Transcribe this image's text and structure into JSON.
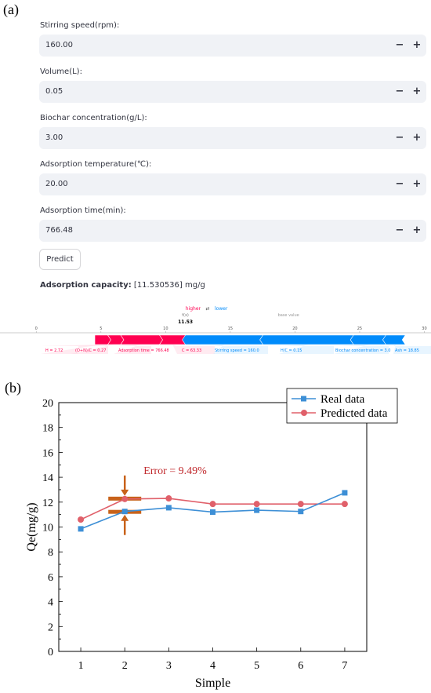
{
  "panel_a_label": "(a)",
  "panel_b_label": "(b)",
  "inputs": [
    {
      "label": "Stirring speed(rpm):",
      "value": "160.00",
      "minus": "−",
      "plus": "+"
    },
    {
      "label": "Volume(L):",
      "value": "0.05",
      "minus": "−",
      "plus": "+"
    },
    {
      "label": "Biochar concentration(g/L):",
      "value": "3.00",
      "minus": "−",
      "plus": "+"
    },
    {
      "label": "Adsorption temperature(℃):",
      "value": "20.00",
      "minus": "−",
      "plus": "+"
    },
    {
      "label": "Adsorption time(min):",
      "value": "766.48",
      "minus": "−",
      "plus": "+"
    }
  ],
  "predict_button": "Predict",
  "result": {
    "label": "Adsorption capacity:",
    "value": "[11.530536] mg/g"
  },
  "force_plot": {
    "higher": "higher",
    "arrows": "⇄",
    "lower": "lower",
    "fx_label": "f(x)",
    "fx_value": "11.53",
    "base_label": "base value",
    "ticks": [
      "0",
      "5",
      "10",
      "15",
      "20",
      "25",
      "30"
    ],
    "tick_values": [
      0,
      5,
      10,
      15,
      20,
      25,
      30
    ],
    "axis_range": [
      -0.5,
      31
    ],
    "fx": 11.53,
    "base": 19.5,
    "positive_color": "#ff0051",
    "negative_color": "#008bfb",
    "positive_features": [
      {
        "label": "H = 2.72",
        "value": 1.0
      },
      {
        "label": "(O+N)/C = 0.27",
        "value": 1.0
      },
      {
        "label": "Adsorption time = 766.48",
        "value": 3.0
      },
      {
        "label": "C = 63.33",
        "value": 2.0
      }
    ],
    "negative_features": [
      {
        "label": "Stirring speed = 160.0",
        "value": 6.0
      },
      {
        "label": "H/C = 0.15",
        "value": 7.0
      },
      {
        "label": "Biochar concentration = 3.0",
        "value": 2.5
      },
      {
        "label": "Ash = 18.85",
        "value": 1.5
      }
    ]
  },
  "chart_data": {
    "type": "line",
    "x": [
      1,
      2,
      3,
      4,
      5,
      6,
      7
    ],
    "xlabel": "Simple",
    "ylabel": "Qe(mg/g)",
    "xlim": [
      0.5,
      7.5
    ],
    "ylim": [
      0,
      20
    ],
    "yticks": [
      0,
      2,
      4,
      6,
      8,
      10,
      12,
      14,
      16,
      18,
      20
    ],
    "series": [
      {
        "name": "Real data",
        "color": "#3d8fd6",
        "marker": "square",
        "values": [
          9.85,
          11.25,
          11.55,
          11.2,
          11.35,
          11.25,
          12.75
        ]
      },
      {
        "name": "Predicted data",
        "color": "#e0606a",
        "marker": "circle",
        "values": [
          10.6,
          12.25,
          12.3,
          11.85,
          11.85,
          11.85,
          11.85
        ]
      }
    ],
    "annotation": {
      "text": "Error = 9.49%",
      "color": "#c0282c",
      "x": 2
    },
    "legend_position": "top-right",
    "grid": false
  }
}
